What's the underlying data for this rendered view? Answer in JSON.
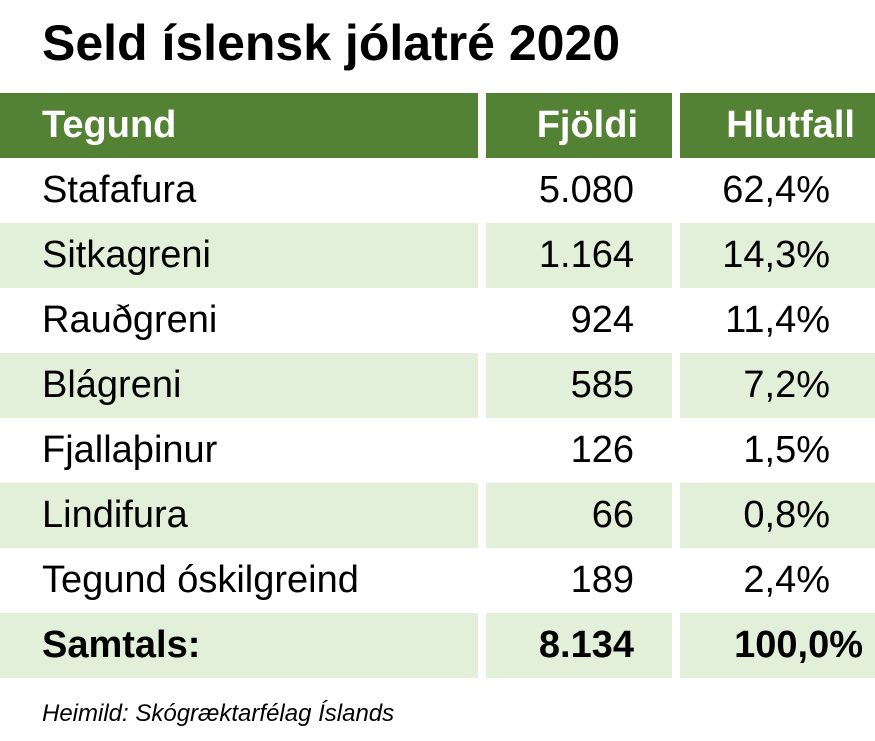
{
  "header": {
    "title": "Seld íslensk jólatré 2020"
  },
  "table": {
    "columns": [
      "Tegund",
      "Fjöldi",
      "Hlutfall"
    ],
    "rows": [
      [
        "Stafafura",
        "5.080",
        "62,4%"
      ],
      [
        "Sitkagreni",
        "1.164",
        "14,3%"
      ],
      [
        "Rauðgreni",
        "924",
        "11,4%"
      ],
      [
        "Blágreni",
        "585",
        "7,2%"
      ],
      [
        "Fjallaþinur",
        "126",
        "1,5%"
      ],
      [
        "Lindifura",
        "66",
        "0,8%"
      ],
      [
        "Tegund óskilgreind",
        "189",
        "2,4%"
      ]
    ],
    "total": [
      "Samtals:",
      "8.134",
      "100,0%"
    ]
  },
  "footer": {
    "source": "Heimild: Skógræktarfélag Íslands"
  }
}
